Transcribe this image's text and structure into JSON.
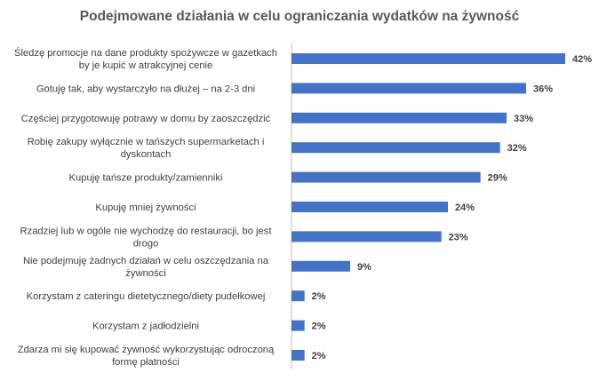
{
  "chart_data": {
    "type": "bar",
    "orientation": "horizontal",
    "title": "Podejmowane działania w celu ograniczania wydatków na żywność",
    "xlabel": "",
    "ylabel": "",
    "xlim": [
      0,
      42
    ],
    "grid": false,
    "legend": "none",
    "bar_color": "#4472C4",
    "categories": [
      [
        "Śledzę promocje na dane produkty spożywcze w gazetkach",
        "by je kupić w atrakcyjnej cenie"
      ],
      [
        "Gotuję tak, aby wystarczyło na dłużej – na 2-3 dni"
      ],
      [
        "Częściej przygotowuję potrawy w domu by zaoszczędzić"
      ],
      [
        "Robię zakupy wyłącznie w tańszych supermarketach i",
        "dyskontach"
      ],
      [
        "Kupuję tańsze produkty/zamienniki"
      ],
      [
        "Kupuję mniej żywności"
      ],
      [
        "Rzadziej lub w ogóle nie wychodzę do restauracji, bo jest",
        "drogo"
      ],
      [
        "Nie podejmuję żadnych działań w celu oszczędzania na",
        "żywności"
      ],
      [
        "Korzystam z cateringu dietetycznego/diety pudełkowej"
      ],
      [
        "Korzystam z jadłodzielni"
      ],
      [
        "Zdarza mi się kupować żywność wykorzystując odroczoną",
        "formę płatności"
      ]
    ],
    "values": [
      42,
      36,
      33,
      32,
      29,
      24,
      23,
      9,
      2,
      2,
      2
    ],
    "value_labels": [
      "42%",
      "36%",
      "33%",
      "32%",
      "29%",
      "24%",
      "23%",
      "9%",
      "2%",
      "2%",
      "2%"
    ]
  }
}
